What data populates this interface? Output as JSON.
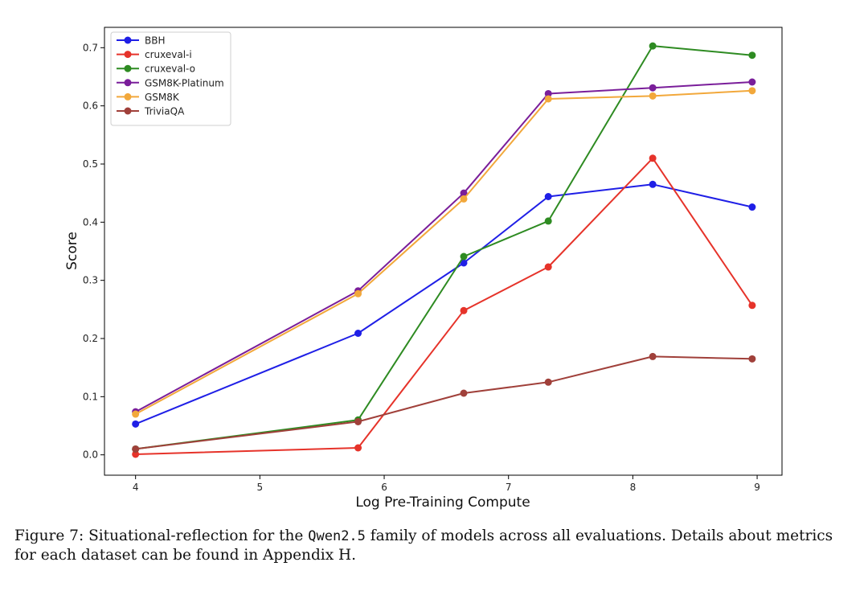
{
  "chart_data": {
    "type": "line",
    "title": "",
    "xlabel": "Log Pre-Training Compute",
    "ylabel": "Score",
    "xlim": [
      3.75,
      9.2
    ],
    "ylim": [
      -0.035,
      0.735
    ],
    "xticks": [
      4,
      5,
      6,
      7,
      8,
      9
    ],
    "yticks": [
      0.0,
      0.1,
      0.2,
      0.3,
      0.4,
      0.5,
      0.6,
      0.7
    ],
    "xtick_labels": [
      "4",
      "5",
      "6",
      "7",
      "8",
      "9"
    ],
    "ytick_labels": [
      "0.0",
      "0.1",
      "0.2",
      "0.3",
      "0.4",
      "0.5",
      "0.6",
      "0.7"
    ],
    "grid": false,
    "legend_position": "top-left",
    "x": [
      4.0,
      5.79,
      6.64,
      7.32,
      8.16,
      8.96
    ],
    "series": [
      {
        "name": "BBH",
        "color": "#1f1fe6",
        "values": [
          0.053,
          0.209,
          0.33,
          0.444,
          0.465,
          0.426
        ]
      },
      {
        "name": "cruxeval-i",
        "color": "#e6332a",
        "values": [
          0.001,
          0.012,
          0.248,
          0.323,
          0.51,
          0.257
        ]
      },
      {
        "name": "cruxeval-o",
        "color": "#2e8b22",
        "values": [
          0.01,
          0.06,
          0.341,
          0.402,
          0.703,
          0.687
        ]
      },
      {
        "name": "GSM8K-Platinum",
        "color": "#7a1e9a",
        "values": [
          0.074,
          0.282,
          0.45,
          0.621,
          0.631,
          0.641
        ]
      },
      {
        "name": "GSM8K",
        "color": "#f2a83b",
        "values": [
          0.07,
          0.277,
          0.44,
          0.612,
          0.617,
          0.626
        ]
      },
      {
        "name": "TriviaQA",
        "color": "#a0403a",
        "values": [
          0.01,
          0.057,
          0.106,
          0.125,
          0.169,
          0.165
        ]
      }
    ]
  },
  "caption": {
    "prefix": "Figure 7: Situational-reflection for the ",
    "model": "Qwen2.5",
    "suffix": " family of models across all evaluations. Details about metrics for each dataset can be found in Appendix H."
  }
}
